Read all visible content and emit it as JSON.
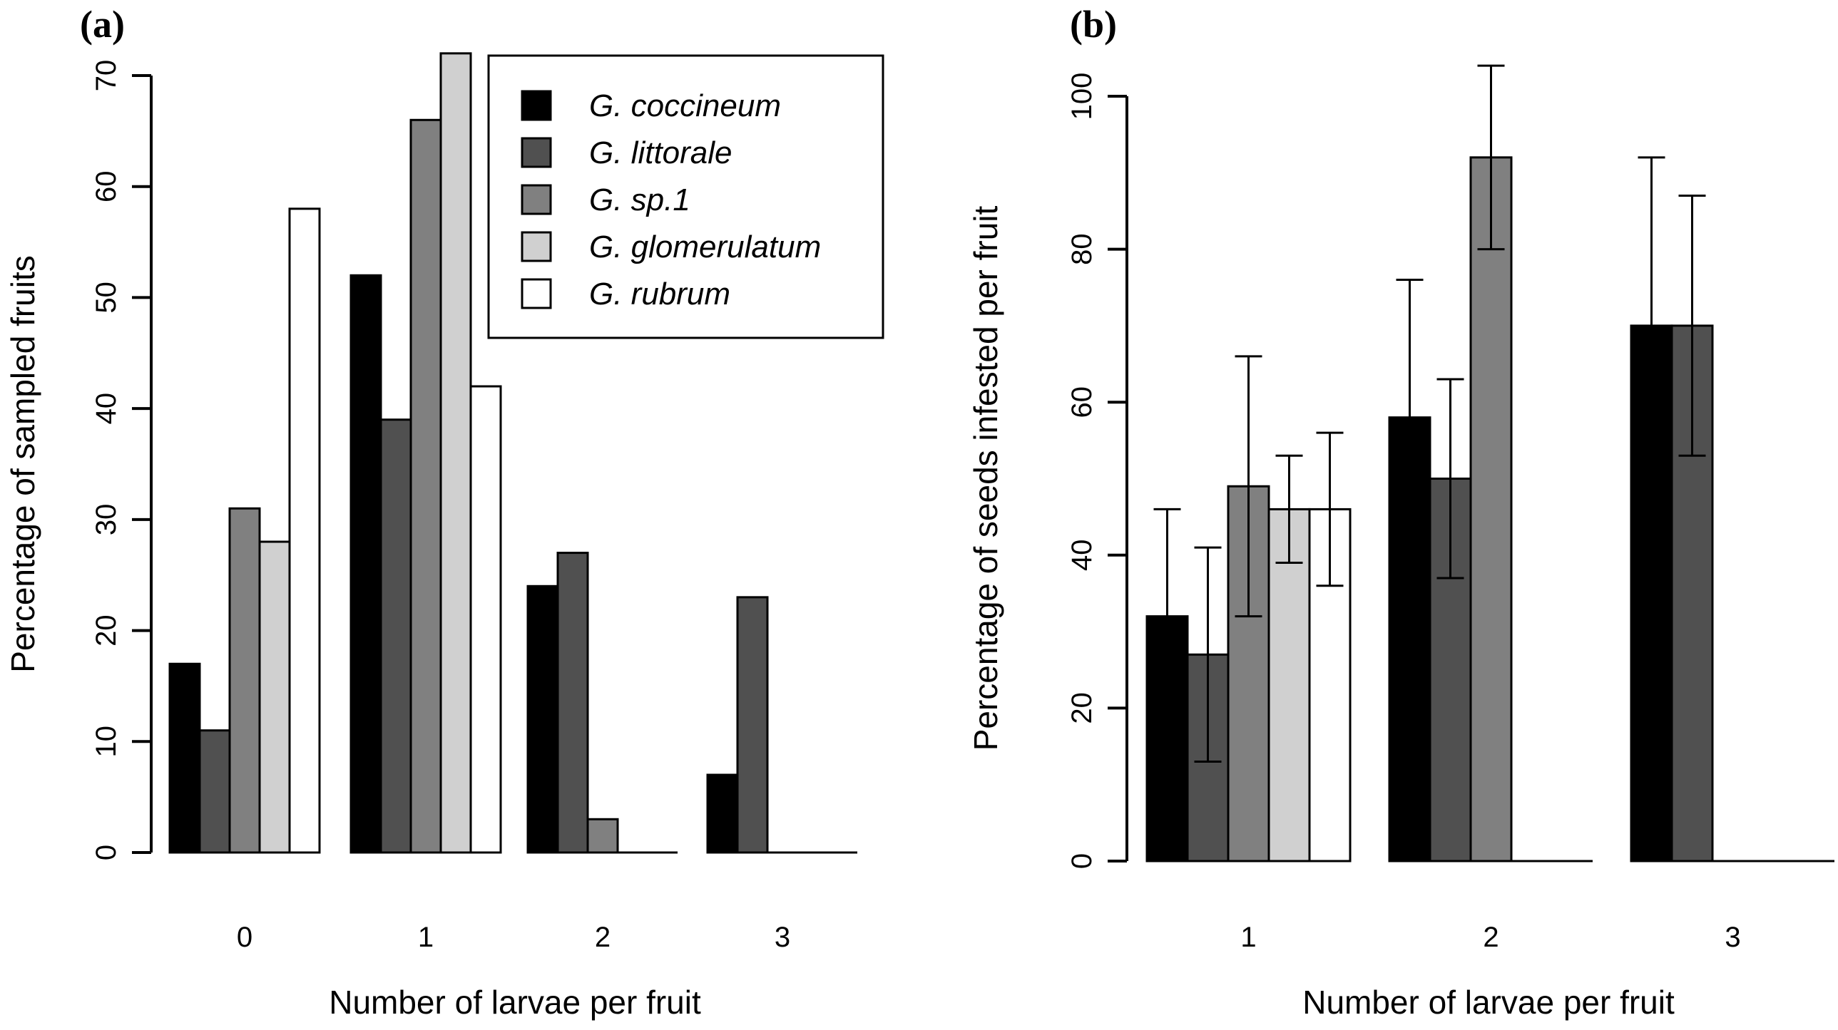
{
  "chart_data": [
    {
      "panel": "(a)",
      "type": "bar",
      "categories": [
        "0",
        "1",
        "2",
        "3"
      ],
      "xlabel": "Number of larvae per fruit",
      "ylabel": "Percentage of sampled fruits",
      "ylim": [
        0,
        70
      ],
      "yticks": [
        "0",
        "10",
        "20",
        "30",
        "40",
        "50",
        "60",
        "70"
      ],
      "legend_position": "top-right",
      "series": [
        {
          "name": "coccineum",
          "label": "G. coccineum",
          "color": "#000000",
          "values": [
            17,
            52,
            24,
            7
          ]
        },
        {
          "name": "littorale",
          "label": "G. littorale",
          "color": "#505050",
          "values": [
            11,
            39,
            27,
            23
          ]
        },
        {
          "name": "sp1",
          "label": "G. sp.1",
          "color": "#808080",
          "values": [
            31,
            66,
            3,
            0
          ]
        },
        {
          "name": "glomerulatum",
          "label": "G. glomerulatum",
          "color": "#d0d0d0",
          "values": [
            28,
            72,
            0,
            0
          ]
        },
        {
          "name": "rubrum",
          "label": "G. rubrum",
          "color": "#ffffff",
          "values": [
            58,
            42,
            0,
            0
          ]
        }
      ]
    },
    {
      "panel": "(b)",
      "type": "bar",
      "categories": [
        "1",
        "2",
        "3"
      ],
      "xlabel": "Number of larvae per fruit",
      "ylabel": "Percentage of seeds infested per fruit",
      "ylim": [
        0,
        100
      ],
      "yticks": [
        "0",
        "20",
        "40",
        "60",
        "80",
        "100"
      ],
      "series": [
        {
          "name": "coccineum",
          "color": "#000000",
          "values": [
            32,
            58,
            70
          ],
          "error": [
            14,
            18,
            22
          ]
        },
        {
          "name": "littorale",
          "color": "#505050",
          "values": [
            27,
            50,
            70
          ],
          "error": [
            14,
            13,
            17
          ]
        },
        {
          "name": "sp1",
          "color": "#808080",
          "values": [
            49,
            92,
            null
          ],
          "error": [
            17,
            12,
            null
          ]
        },
        {
          "name": "glomerulatum",
          "color": "#d0d0d0",
          "values": [
            46,
            null,
            null
          ],
          "error": [
            7,
            null,
            null
          ]
        },
        {
          "name": "rubrum",
          "color": "#ffffff",
          "values": [
            46,
            null,
            null
          ],
          "error": [
            10,
            null,
            null
          ]
        }
      ]
    }
  ]
}
